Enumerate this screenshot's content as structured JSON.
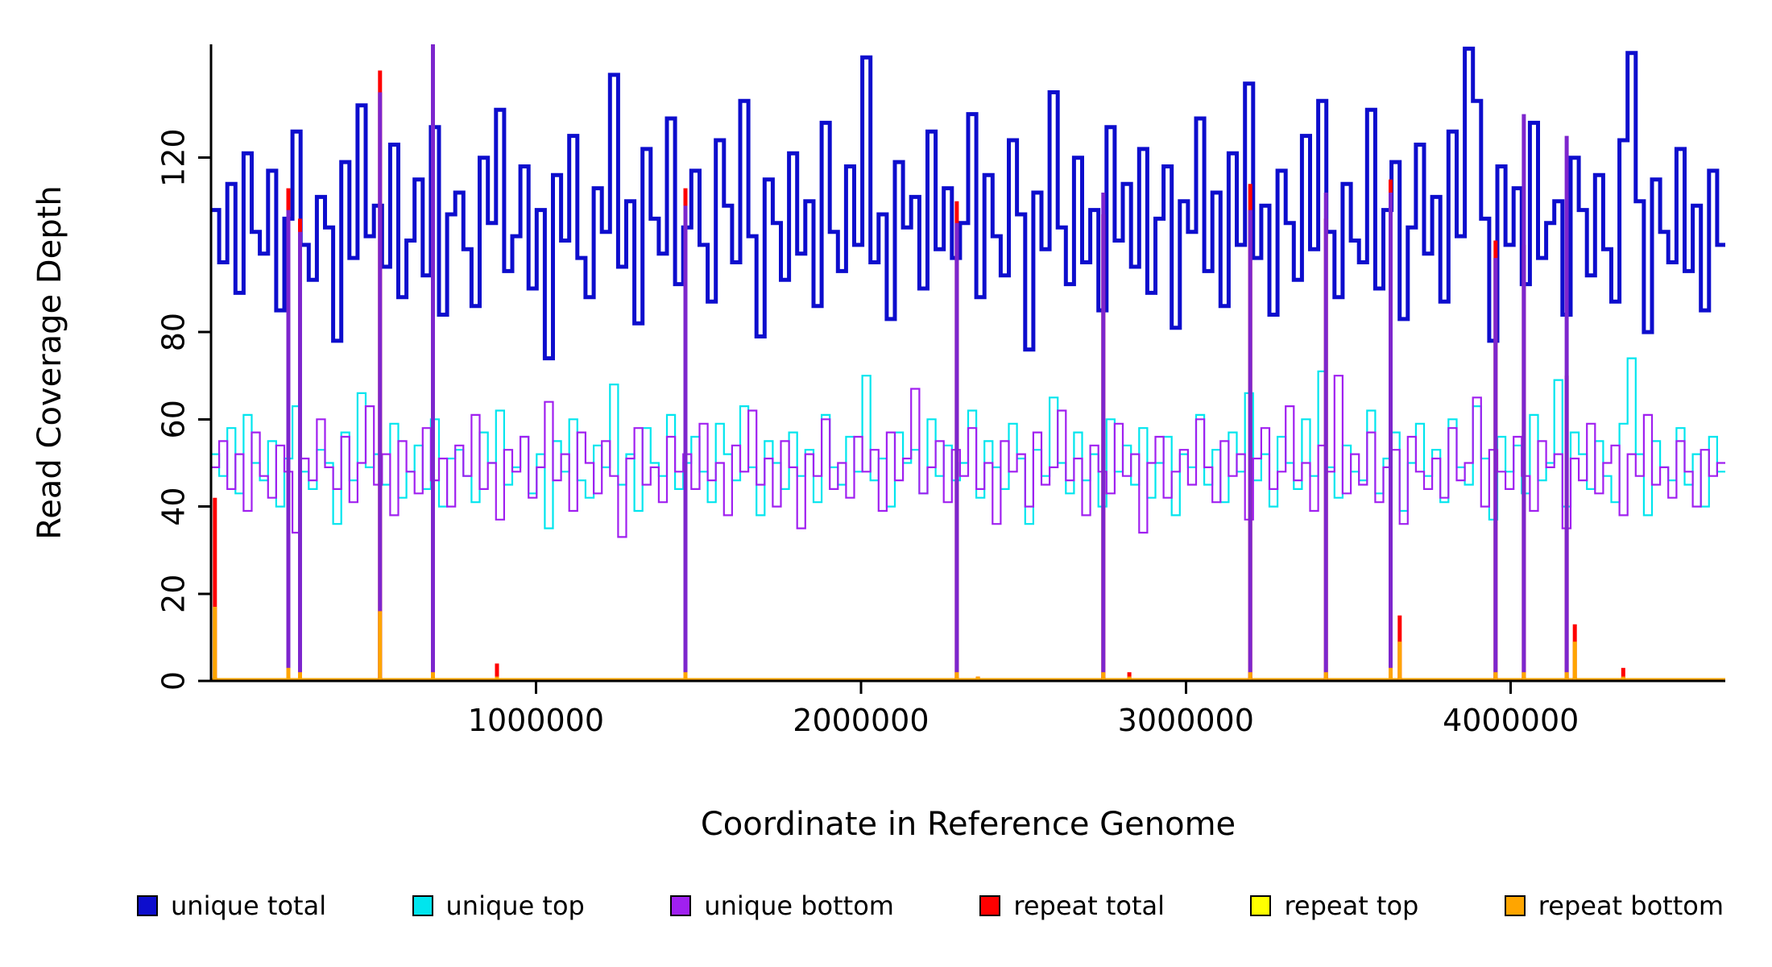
{
  "chart_data": {
    "type": "line",
    "title": "",
    "xlabel": "Coordinate in Reference Genome",
    "ylabel": "Read Coverage Depth",
    "x_start": 0,
    "x_end": 4660000,
    "ylim": [
      0,
      146
    ],
    "x_ticks": [
      1000000,
      2000000,
      3000000,
      4000000
    ],
    "x_tick_labels": [
      "1000000",
      "2000000",
      "3000000",
      "4000000"
    ],
    "y_ticks": [
      0,
      20,
      40,
      60,
      80,
      120
    ],
    "y_tick_labels": [
      "0",
      "20",
      "40",
      "60",
      "80",
      "120"
    ],
    "grid": false,
    "legend_position": "bottom",
    "series": [
      {
        "name": "unique total",
        "color": "#0D0DCD",
        "width": 5,
        "values": [
          108,
          96,
          114,
          89,
          121,
          103,
          98,
          117,
          85,
          106,
          126,
          100,
          92,
          111,
          104,
          78,
          119,
          97,
          132,
          102,
          109,
          95,
          123,
          88,
          101,
          115,
          93,
          127,
          84,
          107,
          112,
          99,
          86,
          120,
          105,
          131,
          94,
          102,
          118,
          90,
          108,
          74,
          116,
          101,
          125,
          97,
          88,
          113,
          103,
          139,
          95,
          110,
          82,
          122,
          106,
          98,
          129,
          91,
          104,
          117,
          100,
          87,
          124,
          109,
          96,
          133,
          102,
          79,
          115,
          105,
          92,
          121,
          98,
          110,
          86,
          128,
          103,
          94,
          118,
          100,
          143,
          96,
          107,
          83,
          119,
          104,
          111,
          90,
          126,
          99,
          113,
          97,
          105,
          130,
          88,
          116,
          102,
          93,
          124,
          107,
          76,
          112,
          99,
          135,
          104,
          91,
          120,
          96,
          108,
          85,
          127,
          101,
          114,
          95,
          122,
          89,
          106,
          118,
          81,
          110,
          103,
          129,
          94,
          112,
          86,
          121,
          100,
          137,
          97,
          109,
          84,
          117,
          105,
          92,
          125,
          99,
          133,
          103,
          88,
          114,
          101,
          96,
          131,
          90,
          108,
          119,
          83,
          104,
          123,
          98,
          111,
          87,
          126,
          102,
          145,
          133,
          106,
          78,
          118,
          100,
          113,
          91,
          128,
          97,
          105,
          110,
          84,
          120,
          108,
          93,
          116,
          99,
          87,
          124,
          144,
          110,
          80,
          115,
          103,
          96,
          122,
          94,
          109,
          85,
          117,
          100
        ]
      },
      {
        "name": "unique top",
        "color": "#00E5EE",
        "width": 2.2,
        "values": [
          52,
          47,
          58,
          43,
          61,
          50,
          46,
          55,
          40,
          51,
          63,
          48,
          44,
          53,
          50,
          36,
          57,
          46,
          66,
          49,
          52,
          45,
          59,
          42,
          48,
          54,
          44,
          60,
          40,
          51,
          53,
          47,
          41,
          57,
          50,
          62,
          45,
          49,
          56,
          43,
          52,
          35,
          55,
          48,
          60,
          46,
          42,
          54,
          49,
          68,
          45,
          52,
          39,
          58,
          50,
          47,
          61,
          44,
          50,
          56,
          48,
          41,
          59,
          52,
          46,
          63,
          49,
          38,
          55,
          50,
          44,
          57,
          47,
          53,
          41,
          61,
          49,
          45,
          56,
          48,
          70,
          46,
          51,
          40,
          57,
          50,
          53,
          43,
          60,
          47,
          54,
          46,
          50,
          62,
          42,
          55,
          49,
          44,
          59,
          51,
          36,
          53,
          47,
          65,
          50,
          43,
          57,
          46,
          52,
          40,
          60,
          48,
          54,
          45,
          58,
          42,
          50,
          56,
          38,
          52,
          49,
          61,
          45,
          53,
          41,
          57,
          48,
          66,
          46,
          52,
          40,
          56,
          50,
          44,
          60,
          47,
          71,
          49,
          42,
          54,
          48,
          46,
          62,
          43,
          51,
          57,
          39,
          50,
          59,
          47,
          53,
          41,
          60,
          49,
          45,
          63,
          51,
          37,
          56,
          48,
          54,
          43,
          61,
          46,
          50,
          69,
          40,
          57,
          52,
          44,
          55,
          47,
          41,
          59,
          74,
          52,
          38,
          55,
          49,
          46,
          58,
          45,
          52,
          40,
          56,
          48
        ]
      },
      {
        "name": "unique bottom",
        "color": "#A020F0",
        "width": 2.2,
        "values": [
          49,
          55,
          44,
          52,
          39,
          57,
          47,
          42,
          54,
          48,
          34,
          51,
          46,
          60,
          49,
          44,
          56,
          41,
          50,
          63,
          45,
          52,
          38,
          55,
          48,
          43,
          58,
          46,
          51,
          40,
          54,
          47,
          61,
          44,
          50,
          37,
          53,
          48,
          56,
          42,
          49,
          64,
          46,
          52,
          39,
          57,
          50,
          43,
          55,
          47,
          33,
          51,
          58,
          45,
          49,
          41,
          56,
          48,
          52,
          44,
          59,
          46,
          50,
          38,
          54,
          48,
          62,
          45,
          51,
          40,
          55,
          49,
          35,
          52,
          47,
          60,
          44,
          50,
          42,
          56,
          48,
          53,
          39,
          57,
          46,
          51,
          67,
          43,
          49,
          55,
          41,
          53,
          47,
          58,
          44,
          50,
          36,
          55,
          48,
          52,
          40,
          57,
          45,
          49,
          62,
          46,
          51,
          38,
          54,
          48,
          43,
          59,
          47,
          52,
          34,
          50,
          56,
          42,
          48,
          53,
          45,
          60,
          49,
          41,
          55,
          47,
          52,
          37,
          51,
          58,
          44,
          48,
          63,
          46,
          50,
          39,
          54,
          48,
          70,
          43,
          52,
          45,
          57,
          41,
          49,
          53,
          36,
          56,
          48,
          44,
          51,
          42,
          58,
          46,
          50,
          65,
          40,
          53,
          48,
          44,
          56,
          47,
          39,
          55,
          49,
          52,
          35,
          51,
          46,
          59,
          43,
          50,
          54,
          38,
          52,
          47,
          61,
          45,
          49,
          42,
          55,
          48,
          40,
          53,
          47,
          50
        ]
      }
    ],
    "repeat_spikes": [
      {
        "x": 12000,
        "red": 42,
        "purple": 0,
        "orange": 17
      },
      {
        "x": 238000,
        "red": 113,
        "purple": 108,
        "orange": 3
      },
      {
        "x": 274000,
        "red": 106,
        "purple": 103,
        "orange": 2
      },
      {
        "x": 520000,
        "red": 140,
        "purple": 135,
        "orange": 16
      },
      {
        "x": 683000,
        "red": 118,
        "purple": 146,
        "orange": 2
      },
      {
        "x": 880000,
        "red": 4,
        "purple": 0,
        "orange": 1
      },
      {
        "x": 1460000,
        "red": 113,
        "purple": 109,
        "orange": 2
      },
      {
        "x": 2295000,
        "red": 110,
        "purple": 105,
        "orange": 2
      },
      {
        "x": 2360000,
        "red": 1,
        "purple": 0,
        "orange": 1
      },
      {
        "x": 2746000,
        "red": 107,
        "purple": 112,
        "orange": 2
      },
      {
        "x": 2826000,
        "red": 2,
        "purple": 0,
        "orange": 1
      },
      {
        "x": 3198000,
        "red": 114,
        "purple": 108,
        "orange": 2
      },
      {
        "x": 3431000,
        "red": 106,
        "purple": 112,
        "orange": 2
      },
      {
        "x": 3630000,
        "red": 115,
        "purple": 112,
        "orange": 3
      },
      {
        "x": 3658000,
        "red": 15,
        "purple": 0,
        "orange": 9
      },
      {
        "x": 3953000,
        "red": 101,
        "purple": 97,
        "orange": 2
      },
      {
        "x": 4040000,
        "red": 100,
        "purple": 130,
        "orange": 2
      },
      {
        "x": 4172000,
        "red": 70,
        "purple": 125,
        "orange": 2
      },
      {
        "x": 4197000,
        "red": 13,
        "purple": 0,
        "orange": 9
      },
      {
        "x": 4346000,
        "red": 3,
        "purple": 0,
        "orange": 1
      }
    ],
    "spike_colors": {
      "red": "#FF0000",
      "purple": "#7D26CD",
      "orange": "#FFA500"
    },
    "baseline_color": "#FFA500",
    "axis_color": "#000000",
    "legend": [
      {
        "label": "unique total",
        "color": "#0D0DCD"
      },
      {
        "label": "unique top",
        "color": "#00E5EE"
      },
      {
        "label": "unique bottom",
        "color": "#A020F0"
      },
      {
        "label": "repeat total",
        "color": "#FF0000"
      },
      {
        "label": "repeat top",
        "color": "#FFFF00"
      },
      {
        "label": "repeat bottom",
        "color": "#FFA500"
      }
    ]
  }
}
